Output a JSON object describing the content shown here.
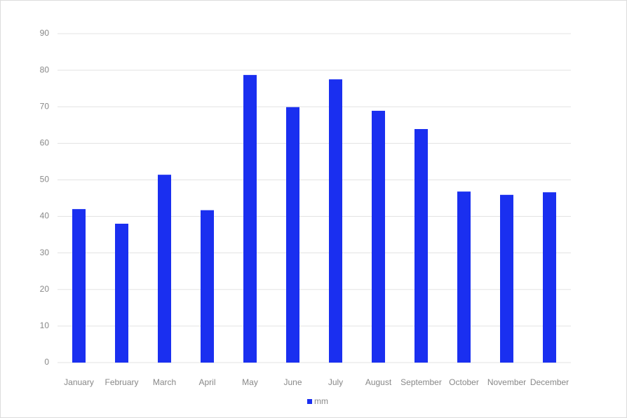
{
  "chart_data": {
    "type": "bar",
    "categories": [
      "January",
      "February",
      "March",
      "April",
      "May",
      "June",
      "July",
      "August",
      "September",
      "October",
      "November",
      "December"
    ],
    "series": [
      {
        "name": "mm",
        "color": "#1a2ff0",
        "values": [
          42.0,
          38.0,
          51.4,
          41.7,
          78.7,
          69.9,
          77.5,
          68.9,
          63.9,
          46.8,
          45.9,
          46.6
        ]
      }
    ],
    "ylim": [
      0,
      90
    ],
    "yticks": [
      0,
      10,
      20,
      30,
      40,
      50,
      60,
      70,
      80,
      90
    ],
    "grid": true,
    "legend": "bottom"
  }
}
